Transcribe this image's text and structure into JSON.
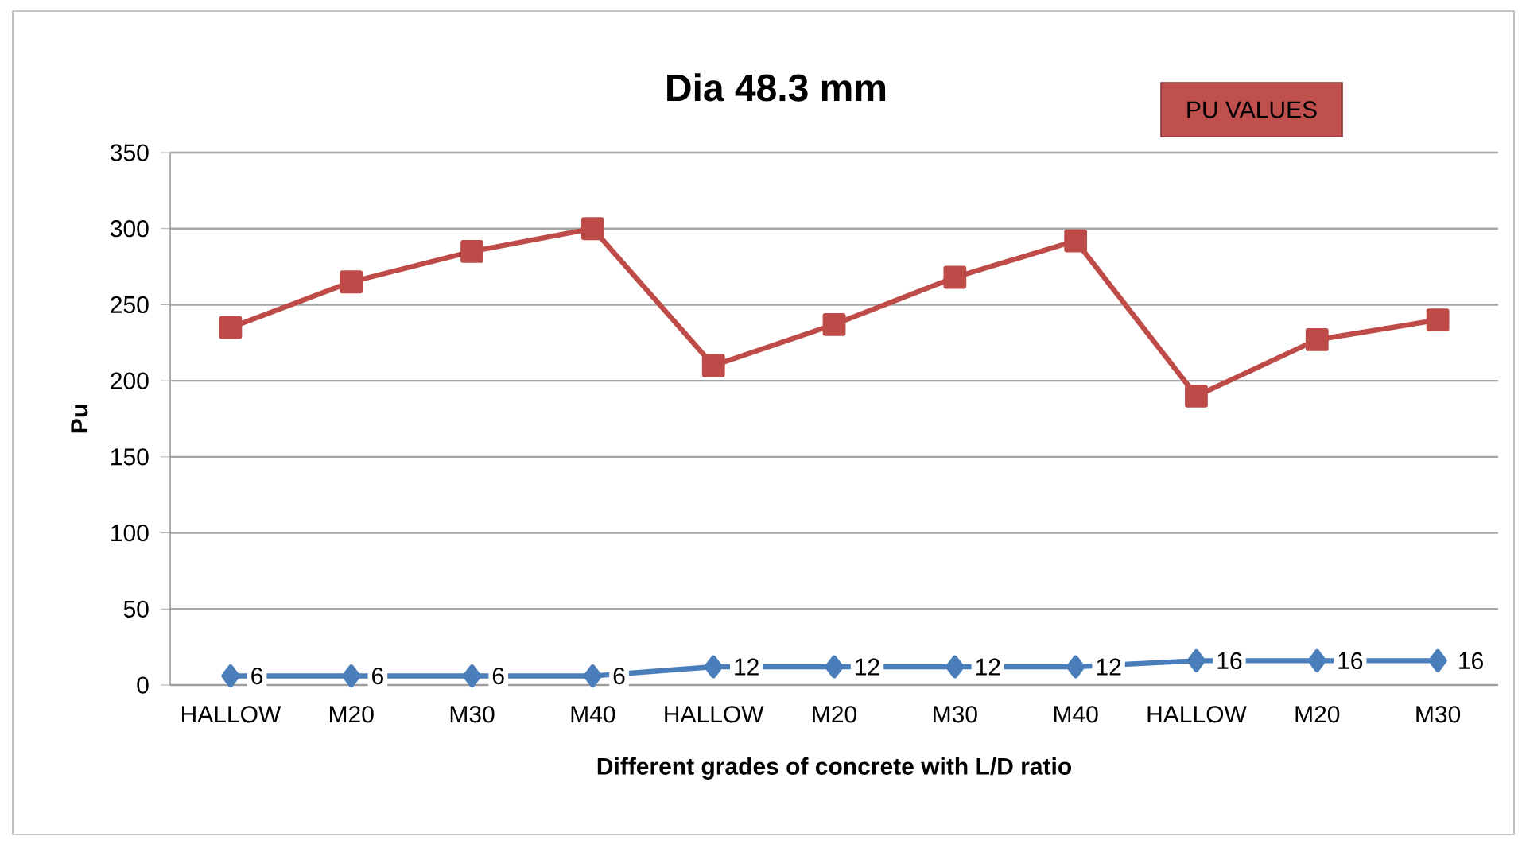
{
  "chart_data": {
    "type": "line",
    "title": "Dia 48.3 mm",
    "xlabel": "Different grades of concrete with L/D ratio",
    "ylabel": "Pu",
    "categories": [
      "HALLOW",
      "M20",
      "M30",
      "M40",
      "HALLOW",
      "M20",
      "M30",
      "M40",
      "HALLOW",
      "M20",
      "M30"
    ],
    "series": [
      {
        "color": "#4a7ebb",
        "marker": "diamond",
        "values": [
          6,
          6,
          6,
          6,
          12,
          12,
          12,
          12,
          16,
          16,
          16
        ],
        "value_labels": [
          "6",
          "6",
          "6",
          "6",
          "12",
          "12",
          "12",
          "12",
          "16",
          "16",
          "16"
        ]
      },
      {
        "color": "#be4b48",
        "marker": "square",
        "values": [
          235,
          265,
          285,
          300,
          210,
          237,
          268,
          292,
          190,
          227,
          240
        ]
      }
    ],
    "ylim": [
      0,
      350
    ],
    "yticks": [
      0,
      50,
      100,
      150,
      200,
      250,
      300,
      350
    ],
    "grid": "y",
    "annotations": [
      "PU VALUES"
    ]
  }
}
